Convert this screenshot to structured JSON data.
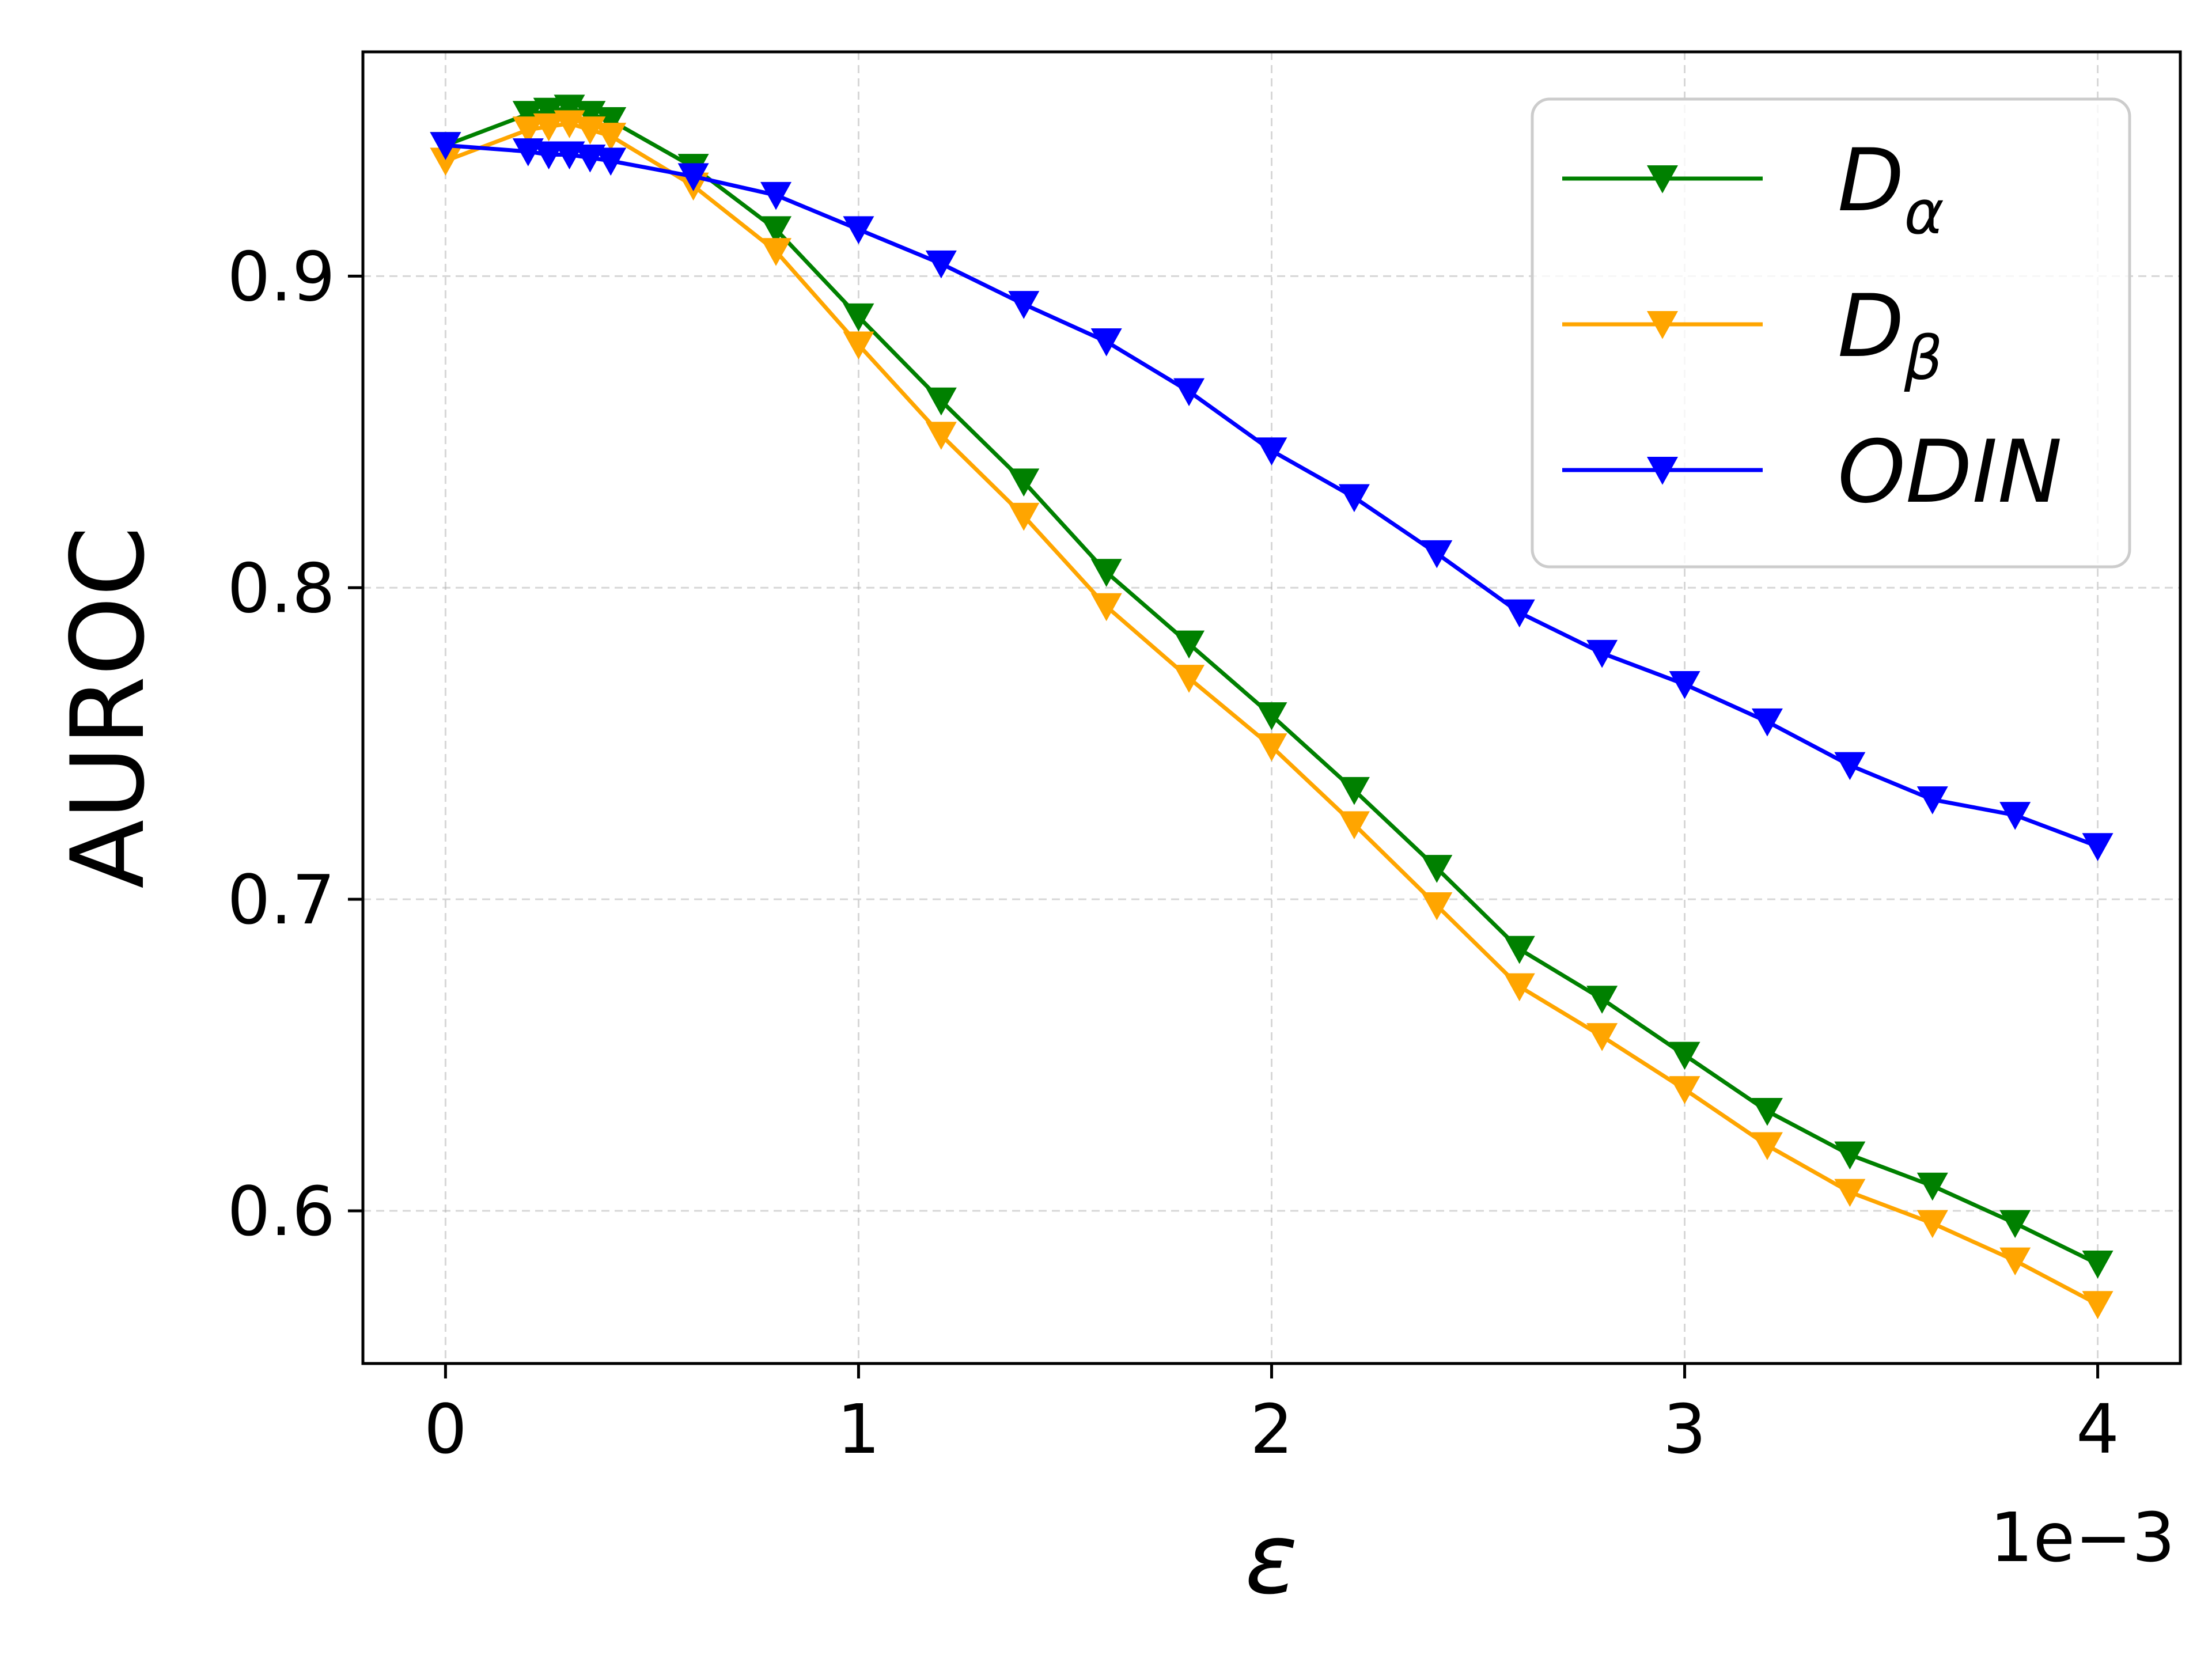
{
  "chart_data": {
    "type": "line",
    "title": "",
    "xlabel": "ε",
    "ylabel": "AUROC",
    "x_offset_label": "1e−3",
    "x_scale_note": "x values in units of 1e-3",
    "xlim": [
      -0.2,
      4.2
    ],
    "ylim": [
      0.551,
      0.972
    ],
    "xticks": [
      0,
      1,
      2,
      3,
      4
    ],
    "xtick_labels": [
      "0",
      "1",
      "2",
      "3",
      "4"
    ],
    "yticks": [
      0.6,
      0.7,
      0.8,
      0.9
    ],
    "ytick_labels": [
      "0.6",
      "0.7",
      "0.8",
      "0.9"
    ],
    "grid": true,
    "legend_position": "top-right",
    "marker": "triangle-down",
    "series": [
      {
        "name": "D",
        "subscript": "α",
        "color": "#008000",
        "x": [
          0,
          0.2,
          0.25,
          0.3,
          0.35,
          0.4,
          0.6,
          0.8,
          1.0,
          1.2,
          1.4,
          1.6,
          1.8,
          2.0,
          2.2,
          2.4,
          2.6,
          2.8,
          3.0,
          3.2,
          3.4,
          3.6,
          3.8,
          4.0
        ],
        "values": [
          0.942,
          0.952,
          0.953,
          0.954,
          0.952,
          0.95,
          0.935,
          0.915,
          0.887,
          0.86,
          0.834,
          0.805,
          0.782,
          0.759,
          0.735,
          0.71,
          0.684,
          0.668,
          0.65,
          0.632,
          0.618,
          0.608,
          0.596,
          0.583
        ]
      },
      {
        "name": "D",
        "subscript": "β",
        "color": "#FFA500",
        "x": [
          0,
          0.2,
          0.25,
          0.3,
          0.35,
          0.4,
          0.6,
          0.8,
          1.0,
          1.2,
          1.4,
          1.6,
          1.8,
          2.0,
          2.2,
          2.4,
          2.6,
          2.8,
          3.0,
          3.2,
          3.4,
          3.6,
          3.8,
          4.0
        ],
        "values": [
          0.937,
          0.947,
          0.948,
          0.949,
          0.947,
          0.945,
          0.929,
          0.908,
          0.878,
          0.849,
          0.823,
          0.794,
          0.771,
          0.749,
          0.724,
          0.698,
          0.672,
          0.656,
          0.639,
          0.621,
          0.606,
          0.596,
          0.584,
          0.57
        ]
      },
      {
        "name": "ODIN",
        "subscript": "",
        "color": "#0000FF",
        "x": [
          0,
          0.2,
          0.25,
          0.3,
          0.35,
          0.4,
          0.6,
          0.8,
          1.0,
          1.2,
          1.4,
          1.6,
          1.8,
          2.0,
          2.2,
          2.4,
          2.6,
          2.8,
          3.0,
          3.2,
          3.4,
          3.6,
          3.8,
          4.0
        ],
        "values": [
          0.942,
          0.94,
          0.939,
          0.939,
          0.938,
          0.937,
          0.932,
          0.926,
          0.915,
          0.904,
          0.891,
          0.879,
          0.863,
          0.844,
          0.829,
          0.811,
          0.792,
          0.779,
          0.769,
          0.757,
          0.743,
          0.732,
          0.727,
          0.717
        ]
      }
    ]
  }
}
